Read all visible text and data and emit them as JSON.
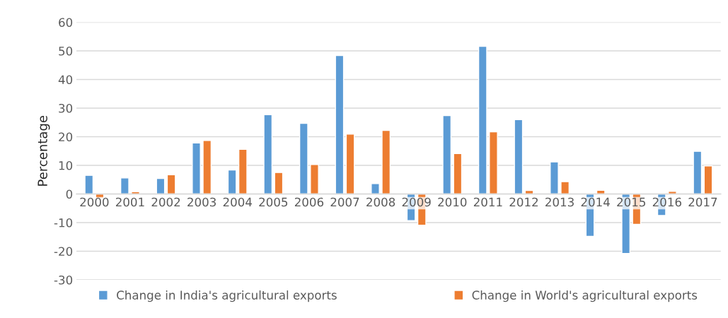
{
  "chart_data": {
    "type": "bar",
    "ylabel": "Percentage",
    "categories": [
      "2000",
      "2001",
      "2002",
      "2003",
      "2004",
      "2005",
      "2006",
      "2007",
      "2008",
      "2009",
      "2010",
      "2011",
      "2012",
      "2013",
      "2014",
      "2015",
      "2016",
      "2017"
    ],
    "series": [
      {
        "name": "Change in India's agricultural exports",
        "color": "#5b9bd5",
        "values": [
          6.5,
          5.6,
          5.4,
          17.8,
          8.4,
          27.7,
          24.7,
          48.4,
          3.6,
          -9.3,
          27.4,
          51.6,
          26.0,
          11.2,
          -14.8,
          -20.8,
          -7.5,
          14.9
        ]
      },
      {
        "name": "Change in World's agricultural exports",
        "color": "#ed7d31",
        "values": [
          -1.5,
          0.8,
          6.7,
          18.7,
          15.6,
          7.5,
          10.3,
          20.9,
          22.2,
          -10.9,
          14.1,
          21.7,
          1.2,
          4.3,
          1.3,
          -10.6,
          0.9,
          9.8
        ]
      }
    ],
    "ylim": [
      -30,
      60
    ],
    "yticks": [
      -30,
      -20,
      -10,
      0,
      10,
      20,
      30,
      40,
      50,
      60
    ],
    "grid": "y",
    "legend": "bottom"
  }
}
